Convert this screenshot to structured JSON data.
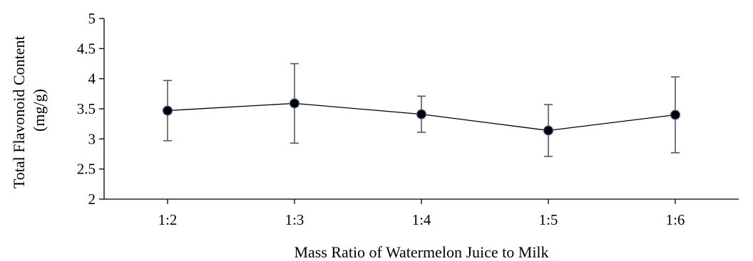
{
  "chart_data": {
    "type": "line",
    "title": "",
    "xlabel": "Mass Ratio of Watermelon Juice to Milk",
    "ylabel_lines": [
      "Total Flavonoid Content",
      "(mg/g)"
    ],
    "categories": [
      "1:2",
      "1:3",
      "1:4",
      "1:5",
      "1:6"
    ],
    "series": [
      {
        "values": [
          3.47,
          3.59,
          3.41,
          3.14,
          3.4
        ],
        "error": [
          0.5,
          0.66,
          0.3,
          0.43,
          0.63
        ]
      }
    ],
    "ylim": [
      2,
      5
    ],
    "yticks": [
      "2",
      "2.5",
      "3",
      "3.5",
      "4",
      "4.5",
      "5"
    ],
    "grid": false,
    "legend": "none"
  }
}
